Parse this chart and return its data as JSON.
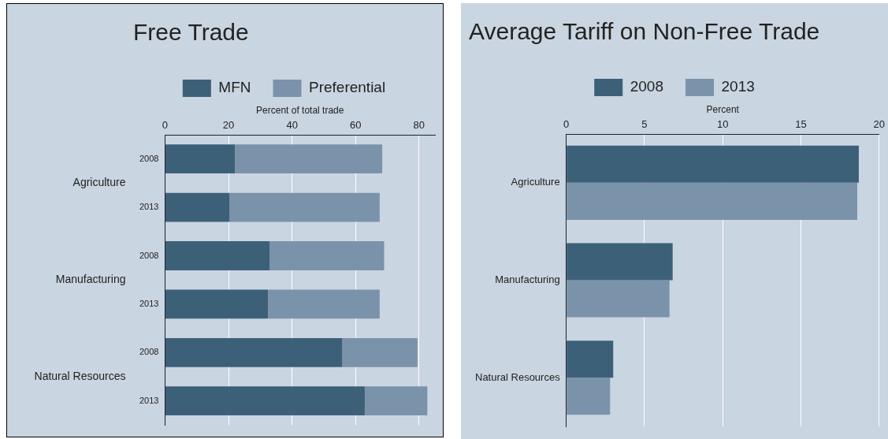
{
  "chart_data": [
    {
      "type": "bar",
      "title": "Free Trade",
      "orientation": "horizontal",
      "stacked": true,
      "xlabel": "Percent of total trade",
      "categories": [
        "2008",
        "2013",
        "2008",
        "2013",
        "2008",
        "2013"
      ],
      "series": [
        {
          "name": "MFN",
          "color": "#3d6079",
          "values": [
            22,
            20.3,
            32.9,
            32.4,
            55.8,
            62.9
          ]
        },
        {
          "name": "Preferential",
          "color": "#7b93aa",
          "values": [
            46.4,
            47.3,
            36.1,
            35.2,
            23.7,
            19.7
          ]
        }
      ],
      "annotations": [
        "Agriculture",
        "Manufacturing",
        "Natural Resources"
      ],
      "xlim": [
        0,
        85
      ],
      "xticks": [
        0,
        20,
        40,
        60,
        80
      ],
      "grid": "x",
      "legend": "top"
    },
    {
      "type": "bar",
      "title": "Average Tariff on Non-Free Trade",
      "orientation": "horizontal",
      "xlabel": "Percent",
      "categories": [
        "Agriculture",
        "Manufacturing",
        "Natural Resources"
      ],
      "series": [
        {
          "name": "2008",
          "color": "#3d6079",
          "values": [
            18.7,
            6.8,
            3.0
          ]
        },
        {
          "name": "2013",
          "color": "#7b93aa",
          "values": [
            18.6,
            6.6,
            2.8
          ]
        }
      ],
      "xlim": [
        0,
        20
      ],
      "xticks": [
        0,
        5,
        10,
        15,
        20
      ],
      "grid": "x",
      "legend": "top"
    }
  ]
}
